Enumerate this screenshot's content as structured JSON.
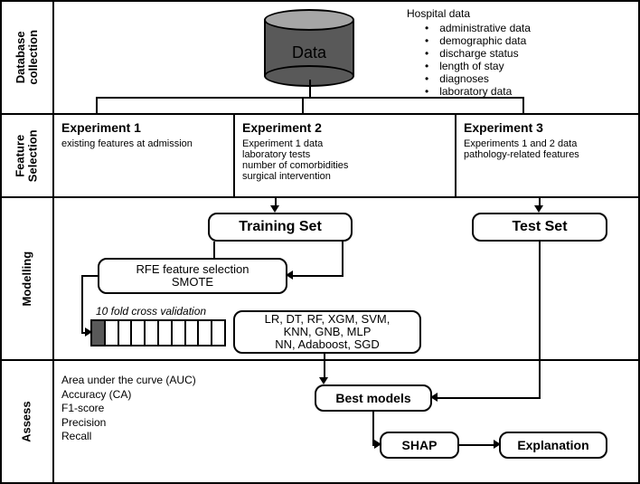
{
  "rows": {
    "r1": "Database\ncollection",
    "r2": "Feature\nSelection",
    "r3": "Modelling",
    "r4": "Assess"
  },
  "db": {
    "label": "Data",
    "top_color": "#a6a6a6",
    "body_color": "#595959"
  },
  "hospital": {
    "title": "Hospital data",
    "items": [
      "administrative data",
      "demographic data",
      "discharge status",
      "length of stay",
      "diagnoses",
      "laboratory data"
    ]
  },
  "feature_selection": {
    "col1": {
      "title": "Experiment 1",
      "body": "existing features at admission"
    },
    "col2": {
      "title": "Experiment 2",
      "body": "Experiment 1 data\nlaboratory tests\nnumber of comorbidities\nsurgical intervention"
    },
    "col3": {
      "title": "Experiment 3",
      "body": "Experiments 1 and 2 data\npathology-related features"
    }
  },
  "modelling": {
    "training": "Training Set",
    "test": "Test Set",
    "rfe": "RFE feature selection\nSMOTE",
    "cv_label": "10 fold cross validation",
    "cv_folds": 10,
    "cv_filled_index": 0,
    "algos": "LR, DT, RF, XGM, SVM,\nKNN, GNB, MLP\nNN, Adaboost, SGD"
  },
  "assess": {
    "metrics": "Area under the curve (AUC)\nAccuracy (CA)\nF1-score\nPrecision\nRecall",
    "best": "Best models",
    "shap": "SHAP",
    "expl": "Explanation"
  },
  "style": {
    "border_color": "#000000",
    "background": "#ffffff",
    "font_title_size": 14,
    "font_body_size": 12
  }
}
